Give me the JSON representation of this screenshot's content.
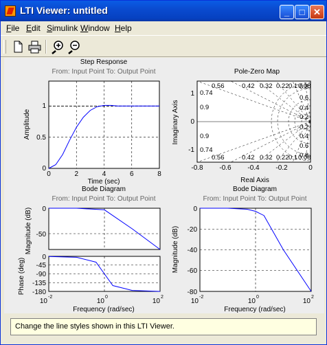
{
  "window": {
    "title": "LTI Viewer: untitled"
  },
  "menu": [
    {
      "label": "File"
    },
    {
      "label": "Edit"
    },
    {
      "label": "Simulink"
    },
    {
      "label": "Window"
    },
    {
      "label": "Help"
    }
  ],
  "toolbar": {
    "icons": [
      "new-icon",
      "print-icon",
      "zoom-in-icon",
      "zoom-out-icon"
    ]
  },
  "plots": {
    "step": {
      "title": "Step Response",
      "subtitle": "From: Input Point  To: Output Point",
      "xlabel": "Time (sec)",
      "ylabel": "Amplitude",
      "xticks": [
        "0",
        "2",
        "4",
        "6",
        "8"
      ],
      "yticks": [
        "0",
        "0.5",
        "1"
      ]
    },
    "pz": {
      "title": "Pole-Zero Map",
      "xlabel": "Real Axis",
      "ylabel": "Imaginary Axis",
      "xticks": [
        "-0.8",
        "-0.6",
        "-0.4",
        "-0.2",
        "0"
      ],
      "yticks": [
        "-1",
        "0",
        "1"
      ],
      "damping_top": [
        "0.56",
        "0.42",
        "0.32",
        "0.22",
        "0.1",
        "0.08"
      ],
      "damping_bottom": [
        "0.56",
        "0.42",
        "0.32",
        "0.22",
        "0.1",
        "0.08"
      ],
      "left_labels": [
        "0.74",
        "0.9",
        "0.9",
        "0.74"
      ],
      "right_labels": [
        "0.8",
        "0.6",
        "0.4",
        "0.2",
        "0.2",
        "0.4",
        "0.6",
        "0.8"
      ]
    },
    "bode1": {
      "title": "Bode Diagram",
      "subtitle": "From: Input Point  To: Output Point",
      "mag_ylabel": "Magnitude (dB)",
      "phase_ylabel": "Phase (deg)",
      "xlabel": "Frequency  (rad/sec)",
      "mag_yticks": [
        "0",
        "-50"
      ],
      "phase_yticks": [
        "0",
        "-45",
        "-90",
        "-135",
        "-180"
      ]
    },
    "bode2": {
      "title": "Bode Diagram",
      "subtitle": "From: Input Point  To: Output Point",
      "ylabel": "Magnitude (dB)",
      "xlabel": "Frequency  (rad/sec)",
      "yticks": [
        "0",
        "-20",
        "-40",
        "-60",
        "-80"
      ]
    },
    "freq_ticks": {
      "base": "10",
      "exponents": [
        "-2",
        "0",
        "2"
      ]
    }
  },
  "status": {
    "text": "Change the line styles shown in this LTI Viewer."
  },
  "chart_data": [
    {
      "type": "line",
      "title": "Step Response",
      "xlabel": "Time (sec)",
      "ylabel": "Amplitude",
      "xlim": [
        0,
        8
      ],
      "ylim": [
        0,
        1.4
      ],
      "grid": true,
      "series": [
        {
          "x": [
            0,
            0.5,
            1,
            1.5,
            2,
            2.5,
            3,
            3.5,
            4,
            4.5,
            5,
            5.5,
            6,
            6.5,
            7,
            8
          ],
          "values": [
            0,
            0.06,
            0.22,
            0.45,
            0.66,
            0.82,
            0.93,
            0.99,
            1.01,
            1.01,
            1.0,
            1.0,
            1.0,
            1.0,
            1.0,
            1.0
          ]
        }
      ],
      "reference_line": 1
    },
    {
      "type": "scatter",
      "title": "Pole-Zero Map",
      "xlabel": "Real Axis",
      "ylabel": "Imaginary Axis",
      "xlim": [
        -0.8,
        0
      ],
      "ylim": [
        -1.4,
        1.4
      ],
      "grid": true
    },
    {
      "type": "line",
      "title": "Bode Diagram",
      "xscale": "log",
      "xlim": [
        0.01,
        100
      ],
      "series": [
        {
          "x": [
            0.01,
            0.1,
            1,
            10,
            100
          ],
          "values": [
            0,
            0,
            -3,
            -40,
            -80
          ]
        },
        {
          "x": [
            0.01,
            0.1,
            0.5,
            1,
            2,
            10,
            100
          ],
          "values": [
            -1,
            -5,
            -30,
            -90,
            -150,
            -175,
            -180
          ]
        }
      ]
    },
    {
      "type": "line",
      "title": "Bode Diagram",
      "xlabel": "Frequency  (rad/sec)",
      "ylabel": "Magnitude (dB)",
      "xscale": "log",
      "xlim": [
        0.01,
        100
      ],
      "ylim": [
        -80,
        0
      ],
      "series": [
        {
          "x": [
            0.01,
            0.1,
            0.5,
            1,
            2,
            10,
            100
          ],
          "values": [
            0,
            0,
            -1,
            -3,
            -7,
            -40,
            -80
          ]
        }
      ]
    }
  ]
}
